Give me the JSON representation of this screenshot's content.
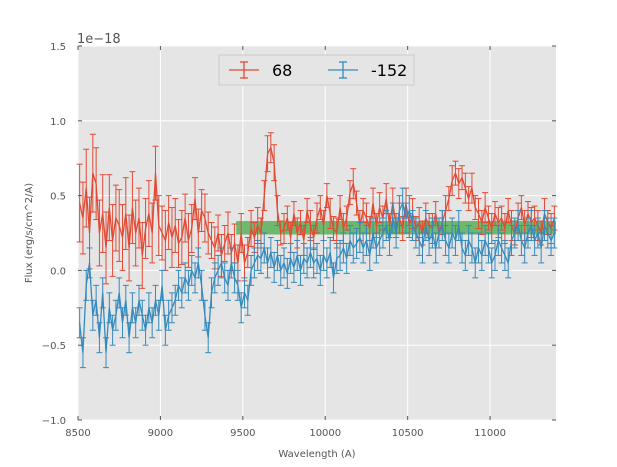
{
  "chart_data": {
    "type": "line",
    "title": "",
    "xlabel": "Wavelength (A)",
    "ylabel": "Flux (erg/s/cm^2/A)",
    "offset_label": "1e−18",
    "xlim": [
      8500,
      11400
    ],
    "ylim": [
      -1.0,
      1.5
    ],
    "grid": true,
    "legend_position": "top-center",
    "x_ticks": [
      8500,
      9000,
      9500,
      10000,
      10500,
      11000
    ],
    "x_tick_labels": [
      "8500",
      "9000",
      "9500",
      "10000",
      "10500",
      "11000"
    ],
    "y_ticks": [
      -1.0,
      -0.5,
      0.0,
      0.5,
      1.0,
      1.5
    ],
    "y_tick_labels": [
      "−1.0",
      "−0.5",
      "0.0",
      "0.5",
      "1.0",
      "1.5"
    ],
    "band": {
      "x_start": 9460,
      "x_end": 11400,
      "y_low": 0.24,
      "y_high": 0.33,
      "color": "#2ca02c"
    },
    "x": [
      8510,
      8530,
      8550,
      8570,
      8590,
      8610,
      8630,
      8650,
      8670,
      8690,
      8710,
      8730,
      8750,
      8770,
      8790,
      8810,
      8830,
      8850,
      8870,
      8890,
      8910,
      8930,
      8950,
      8970,
      8990,
      9010,
      9030,
      9050,
      9070,
      9090,
      9110,
      9130,
      9150,
      9170,
      9190,
      9210,
      9230,
      9250,
      9270,
      9290,
      9310,
      9330,
      9350,
      9370,
      9390,
      9410,
      9430,
      9450,
      9470,
      9490,
      9510,
      9530,
      9550,
      9570,
      9590,
      9610,
      9630,
      9650,
      9670,
      9690,
      9710,
      9730,
      9750,
      9770,
      9790,
      9810,
      9830,
      9850,
      9870,
      9890,
      9910,
      9930,
      9950,
      9970,
      9990,
      10010,
      10030,
      10050,
      10070,
      10090,
      10110,
      10130,
      10150,
      10170,
      10190,
      10210,
      10230,
      10250,
      10270,
      10290,
      10310,
      10330,
      10350,
      10370,
      10390,
      10410,
      10430,
      10450,
      10470,
      10490,
      10510,
      10530,
      10550,
      10570,
      10590,
      10610,
      10630,
      10650,
      10670,
      10690,
      10710,
      10730,
      10750,
      10770,
      10790,
      10810,
      10830,
      10850,
      10870,
      10890,
      10910,
      10930,
      10950,
      10970,
      10990,
      11010,
      11030,
      11050,
      11070,
      11090,
      11110,
      11130,
      11150,
      11170,
      11190,
      11210,
      11230,
      11250,
      11270,
      11290,
      11310,
      11330,
      11350,
      11370,
      11390
    ],
    "series": [
      {
        "name": "68",
        "color": "#e24a33",
        "values": [
          0.45,
          0.35,
          0.55,
          0.25,
          0.65,
          0.58,
          0.25,
          0.38,
          0.15,
          0.42,
          0.2,
          0.35,
          0.3,
          0.22,
          0.38,
          0.15,
          0.42,
          0.25,
          0.35,
          0.1,
          0.28,
          0.38,
          0.25,
          0.65,
          0.3,
          0.25,
          0.2,
          0.32,
          0.22,
          0.3,
          0.18,
          0.22,
          0.35,
          0.2,
          0.28,
          0.48,
          0.25,
          0.4,
          0.35,
          0.25,
          0.2,
          0.15,
          0.25,
          0.1,
          0.18,
          0.25,
          0.12,
          0.18,
          0.05,
          0.25,
          0.05,
          0.12,
          0.28,
          0.22,
          0.3,
          0.25,
          0.5,
          0.78,
          0.82,
          0.72,
          0.4,
          0.25,
          0.28,
          0.35,
          0.22,
          0.38,
          0.25,
          0.32,
          0.2,
          0.4,
          0.3,
          0.22,
          0.35,
          0.42,
          0.3,
          0.5,
          0.38,
          0.28,
          0.25,
          0.42,
          0.28,
          0.35,
          0.52,
          0.58,
          0.45,
          0.3,
          0.4,
          0.35,
          0.28,
          0.45,
          0.3,
          0.42,
          0.35,
          0.48,
          0.3,
          0.45,
          0.3,
          0.35,
          0.28,
          0.45,
          0.3,
          0.38,
          0.28,
          0.32,
          0.25,
          0.35,
          0.3,
          0.28,
          0.38,
          0.25,
          0.32,
          0.4,
          0.48,
          0.6,
          0.65,
          0.58,
          0.62,
          0.55,
          0.48,
          0.55,
          0.42,
          0.38,
          0.32,
          0.42,
          0.35,
          0.28,
          0.38,
          0.32,
          0.35,
          0.28,
          0.4,
          0.3,
          0.25,
          0.35,
          0.42,
          0.3,
          0.38,
          0.32,
          0.35,
          0.3,
          0.25,
          0.38,
          0.32,
          0.28,
          0.35
        ],
        "errors": [
          0.26,
          0.24,
          0.26,
          0.24,
          0.26,
          0.24,
          0.22,
          0.26,
          0.24,
          0.22,
          0.24,
          0.22,
          0.24,
          0.22,
          0.24,
          0.22,
          0.24,
          0.22,
          0.2,
          0.22,
          0.2,
          0.22,
          0.2,
          0.18,
          0.2,
          0.18,
          0.2,
          0.18,
          0.2,
          0.18,
          0.16,
          0.18,
          0.16,
          0.18,
          0.16,
          0.14,
          0.16,
          0.14,
          0.16,
          0.14,
          0.12,
          0.14,
          0.12,
          0.14,
          0.12,
          0.14,
          0.12,
          0.13,
          0.12,
          0.13,
          0.12,
          0.1,
          0.12,
          0.1,
          0.12,
          0.1,
          0.1,
          0.12,
          0.1,
          0.12,
          0.1,
          0.08,
          0.1,
          0.08,
          0.1,
          0.08,
          0.1,
          0.08,
          0.1,
          0.08,
          0.1,
          0.08,
          0.1,
          0.08,
          0.1,
          0.08,
          0.1,
          0.08,
          0.1,
          0.08,
          0.1,
          0.08,
          0.08,
          0.1,
          0.08,
          0.1,
          0.08,
          0.1,
          0.08,
          0.1,
          0.08,
          0.1,
          0.08,
          0.1,
          0.08,
          0.1,
          0.08,
          0.1,
          0.08,
          0.1,
          0.08,
          0.1,
          0.08,
          0.1,
          0.08,
          0.1,
          0.08,
          0.1,
          0.08,
          0.1,
          0.08,
          0.1,
          0.08,
          0.1,
          0.08,
          0.1,
          0.08,
          0.1,
          0.08,
          0.1,
          0.08,
          0.1,
          0.08,
          0.1,
          0.08,
          0.1,
          0.08,
          0.1,
          0.08,
          0.1,
          0.08,
          0.1,
          0.08,
          0.1,
          0.08,
          0.1,
          0.08,
          0.1,
          0.08,
          0.1,
          0.08,
          0.1,
          0.08,
          0.1,
          0.08
        ]
      },
      {
        "name": "-152",
        "color": "#348abd",
        "values": [
          -0.35,
          -0.55,
          -0.1,
          0.05,
          -0.3,
          -0.2,
          -0.45,
          -0.15,
          -0.55,
          -0.25,
          -0.4,
          -0.3,
          -0.15,
          -0.35,
          -0.2,
          -0.45,
          -0.25,
          -0.35,
          -0.2,
          -0.3,
          -0.4,
          -0.25,
          -0.35,
          -0.2,
          -0.3,
          -0.1,
          -0.4,
          -0.3,
          -0.25,
          -0.2,
          -0.1,
          -0.15,
          -0.05,
          -0.1,
          0.0,
          -0.05,
          0.05,
          -0.1,
          -0.3,
          -0.45,
          -0.15,
          -0.05,
          0.0,
          0.05,
          -0.05,
          -0.1,
          0.05,
          -0.05,
          -0.1,
          -0.25,
          -0.15,
          -0.2,
          0.0,
          0.05,
          0.1,
          0.08,
          0.15,
          0.05,
          0.12,
          0.02,
          0.1,
          0.0,
          0.05,
          -0.02,
          0.08,
          0.02,
          0.1,
          0.0,
          0.08,
          0.05,
          0.12,
          0.05,
          0.08,
          0.0,
          0.1,
          0.05,
          0.12,
          -0.05,
          0.08,
          0.1,
          0.15,
          0.08,
          0.2,
          0.15,
          0.18,
          0.22,
          0.15,
          0.2,
          0.1,
          0.25,
          0.15,
          0.2,
          0.25,
          0.3,
          0.2,
          0.35,
          0.25,
          0.4,
          0.45,
          0.35,
          0.4,
          0.3,
          0.25,
          0.2,
          0.15,
          0.3,
          0.2,
          0.25,
          0.15,
          0.25,
          0.3,
          0.2,
          0.15,
          0.25,
          0.2,
          0.3,
          0.15,
          0.1,
          0.2,
          0.15,
          0.05,
          0.15,
          0.1,
          0.2,
          0.15,
          0.05,
          0.1,
          0.2,
          0.15,
          0.1,
          0.05,
          0.2,
          0.25,
          0.3,
          0.2,
          0.15,
          0.25,
          0.3,
          0.2,
          0.25,
          0.15,
          0.3,
          0.25,
          0.2,
          0.25
        ]
      }
    ]
  }
}
